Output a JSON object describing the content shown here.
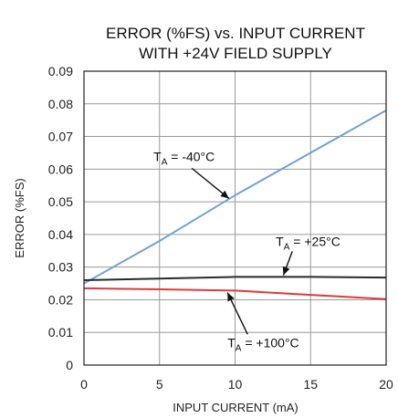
{
  "chart_data": {
    "type": "line",
    "title": "ERROR (%FS) vs. INPUT CURRENT",
    "subtitle": "WITH +24V FIELD SUPPLY",
    "xlabel": "INPUT CURRENT (mA)",
    "ylabel": "ERROR (%FS)",
    "xlim": [
      0,
      20
    ],
    "ylim": [
      0,
      0.09
    ],
    "x_ticks": [
      "0",
      "5",
      "10",
      "15",
      "20"
    ],
    "y_ticks": [
      "0",
      "0.01",
      "0.02",
      "0.03",
      "0.04",
      "0.05",
      "0.06",
      "0.07",
      "0.08",
      "0.09"
    ],
    "grid": true,
    "series": [
      {
        "name": "TA = -40°C",
        "color": "#6fa3d6",
        "x": [
          0,
          5,
          10,
          15,
          20
        ],
        "y": [
          0.025,
          0.038,
          0.052,
          0.065,
          0.078
        ]
      },
      {
        "name": "TA = +25°C",
        "color": "#2a2a2a",
        "x": [
          0,
          5,
          10,
          15,
          20
        ],
        "y": [
          0.026,
          0.0265,
          0.027,
          0.027,
          0.0268
        ]
      },
      {
        "name": "TA = +100°C",
        "color": "#e0393c",
        "x": [
          0,
          5,
          10,
          15,
          20
        ],
        "y": [
          0.0235,
          0.0232,
          0.0228,
          0.0215,
          0.0202
        ]
      }
    ],
    "annotations": [
      {
        "main": "T",
        "sub": "A",
        "rest": " = -40°C",
        "label_at": [
          4.6,
          0.0625
        ],
        "arrow_to": [
          9.6,
          0.051
        ]
      },
      {
        "main": "T",
        "sub": "A",
        "rest": " = +25°C",
        "label_at": [
          12.7,
          0.0365
        ],
        "arrow_to": [
          13.2,
          0.0275
        ]
      },
      {
        "main": "T",
        "sub": "A",
        "rest": " = +100°C",
        "label_at": [
          9.5,
          0.0055
        ],
        "arrow_to": [
          9.5,
          0.0222
        ]
      }
    ]
  }
}
